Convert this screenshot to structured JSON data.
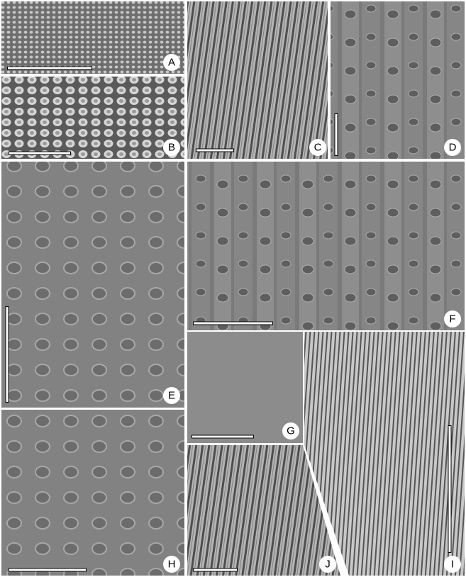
{
  "figure": {
    "panels": [
      {
        "label": "A"
      },
      {
        "label": "B"
      },
      {
        "label": "C"
      },
      {
        "label": "D"
      },
      {
        "label": "E"
      },
      {
        "label": "F"
      },
      {
        "label": "G"
      },
      {
        "label": "H"
      },
      {
        "label": "I"
      },
      {
        "label": "J"
      }
    ]
  }
}
